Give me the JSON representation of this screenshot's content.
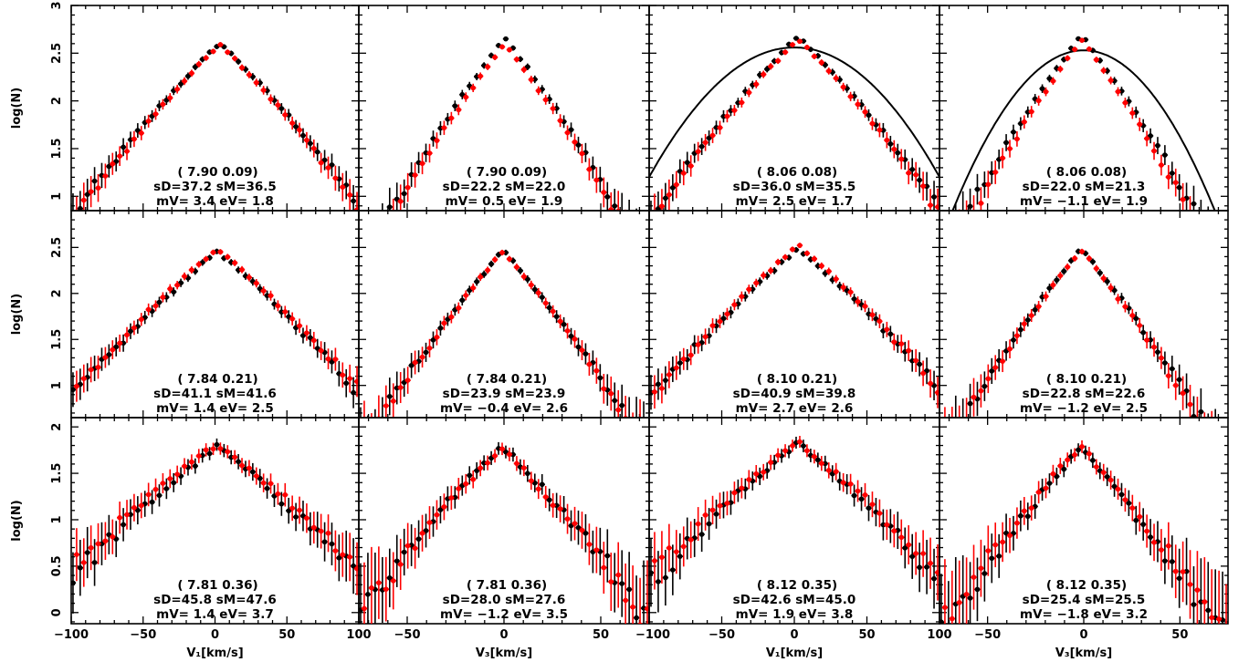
{
  "figure": {
    "ylabel": "log(N)",
    "row_ytick_labels": [
      [
        "1",
        "1.5",
        "2",
        "2.5",
        "3"
      ],
      [
        "1",
        "1.5",
        "2",
        "2.5"
      ],
      [
        "0",
        "0.5",
        "1",
        "1.5",
        "2"
      ]
    ],
    "col_xtick_labels": [
      [
        "−100",
        "−50",
        "0",
        "50",
        "100"
      ],
      [
        "−50",
        "0",
        "50"
      ],
      [
        "−100",
        "−50",
        "0",
        "50",
        "100"
      ],
      [
        "−50",
        "0",
        "50"
      ]
    ],
    "col_xlabels": [
      "V₁[km/s]",
      "V₃[km/s]",
      "V₁[km/s]",
      "V₃[km/s]"
    ]
  },
  "colors": {
    "series_black": "#000000",
    "series_red": "#ff0000",
    "model_curve": "#000000"
  },
  "chart_data": {
    "type": "scatter",
    "rows": [
      {
        "ylim": [
          0.85,
          3.0
        ],
        "yticks": [
          1,
          1.5,
          2,
          2.5,
          3
        ]
      },
      {
        "ylim": [
          0.65,
          2.9
        ],
        "yticks": [
          1,
          1.5,
          2,
          2.5
        ]
      },
      {
        "ylim": [
          -0.12,
          2.1
        ],
        "yticks": [
          0,
          0.5,
          1,
          1.5,
          2
        ]
      }
    ],
    "cols": [
      {
        "xlim": [
          -100,
          100
        ],
        "xticks": [
          -100,
          -50,
          0,
          50,
          100
        ]
      },
      {
        "xlim": [
          -75,
          75
        ],
        "xticks": [
          -50,
          0,
          50
        ]
      },
      {
        "xlim": [
          -100,
          100
        ],
        "xticks": [
          -100,
          -50,
          0,
          50,
          100
        ]
      },
      {
        "xlim": [
          -75,
          75
        ],
        "xticks": [
          -50,
          0,
          50
        ]
      }
    ],
    "panels": [
      {
        "row": 0,
        "col": 0,
        "label": "( 7.90  0.09)",
        "line2": "sD=37.2   sM=36.5",
        "line3": "mV=   3.4   eV=  1.8",
        "sigma_black": 37.2,
        "sigma_red": 36.5,
        "mean": 3.4,
        "peak_black": 2.61,
        "peak_red": 2.6
      },
      {
        "row": 0,
        "col": 1,
        "label": "( 7.90  0.09)",
        "line2": "sD=22.2   sM=22.0",
        "line3": "mV=   0.5   eV=  1.9",
        "sigma_black": 22.2,
        "sigma_red": 22.0,
        "mean": 0.5,
        "peak_black": 2.66,
        "peak_red": 2.6
      },
      {
        "row": 0,
        "col": 2,
        "label": "( 8.06  0.08)",
        "line2": "sD=36.0   sM=35.5",
        "line3": "mV=   2.5   eV=  1.7",
        "sigma_black": 36.0,
        "sigma_red": 35.5,
        "mean": 2.5,
        "peak_black": 2.68,
        "peak_red": 2.65,
        "curve": {
          "peak": 2.56,
          "center": 0,
          "sigma": 40
        }
      },
      {
        "row": 0,
        "col": 3,
        "label": "( 8.06  0.08)",
        "line2": "sD=22.0   sM=21.3",
        "line3": "mV=  −1.1   eV=  1.9",
        "sigma_black": 22.0,
        "sigma_red": 21.3,
        "mean": -1.1,
        "peak_black": 2.69,
        "peak_red": 2.64,
        "curve": {
          "peak": 2.53,
          "center": 0,
          "sigma": 24.5
        }
      },
      {
        "row": 1,
        "col": 0,
        "label": "( 7.84  0.21)",
        "line2": "sD=41.1   sM=41.6",
        "line3": "mV=   1.4   eV=  2.5",
        "sigma_black": 41.1,
        "sigma_red": 41.6,
        "mean": 1.4,
        "peak_black": 2.46,
        "peak_red": 2.49
      },
      {
        "row": 1,
        "col": 1,
        "label": "( 7.84  0.21)",
        "line2": "sD=23.9   sM=23.9",
        "line3": "mV=  −0.4   eV=  2.6",
        "sigma_black": 23.9,
        "sigma_red": 23.9,
        "mean": -0.4,
        "peak_black": 2.47,
        "peak_red": 2.46
      },
      {
        "row": 1,
        "col": 2,
        "label": "( 8.10  0.21)",
        "line2": "sD=40.9   sM=39.8",
        "line3": "mV=   2.7   eV=  2.6",
        "sigma_black": 40.9,
        "sigma_red": 39.8,
        "mean": 2.7,
        "peak_black": 2.49,
        "peak_red": 2.53
      },
      {
        "row": 1,
        "col": 3,
        "label": "( 8.10  0.21)",
        "line2": "sD=22.8   sM=22.6",
        "line3": "mV=  −1.2   eV=  2.5",
        "sigma_black": 22.8,
        "sigma_red": 22.6,
        "mean": -1.2,
        "peak_black": 2.49,
        "peak_red": 2.47
      },
      {
        "row": 2,
        "col": 0,
        "label": "( 7.81  0.36)",
        "line2": "sD=45.8   sM=47.6",
        "line3": "mV=   1.4   eV=  3.7",
        "sigma_black": 45.8,
        "sigma_red": 47.6,
        "mean": 1.4,
        "peak_black": 1.79,
        "peak_red": 1.82
      },
      {
        "row": 2,
        "col": 1,
        "label": "( 7.81  0.36)",
        "line2": "sD=28.0   sM=27.6",
        "line3": "mV=  −1.2   eV=  3.5",
        "sigma_black": 28.0,
        "sigma_red": 27.6,
        "mean": -1.2,
        "peak_black": 1.8,
        "peak_red": 1.79
      },
      {
        "row": 2,
        "col": 2,
        "label": "( 8.12  0.35)",
        "line2": "sD=42.6   sM=45.0",
        "line3": "mV=   1.9   eV=  3.8",
        "sigma_black": 42.6,
        "sigma_red": 45.0,
        "mean": 1.9,
        "peak_black": 1.83,
        "peak_red": 1.84
      },
      {
        "row": 2,
        "col": 3,
        "label": "( 8.12  0.35)",
        "line2": "sD=25.4   sM=25.5",
        "line3": "mV=  −1.8   eV=  3.2",
        "sigma_black": 25.4,
        "sigma_red": 25.5,
        "mean": -1.8,
        "peak_black": 1.76,
        "peak_red": 1.79
      }
    ]
  }
}
